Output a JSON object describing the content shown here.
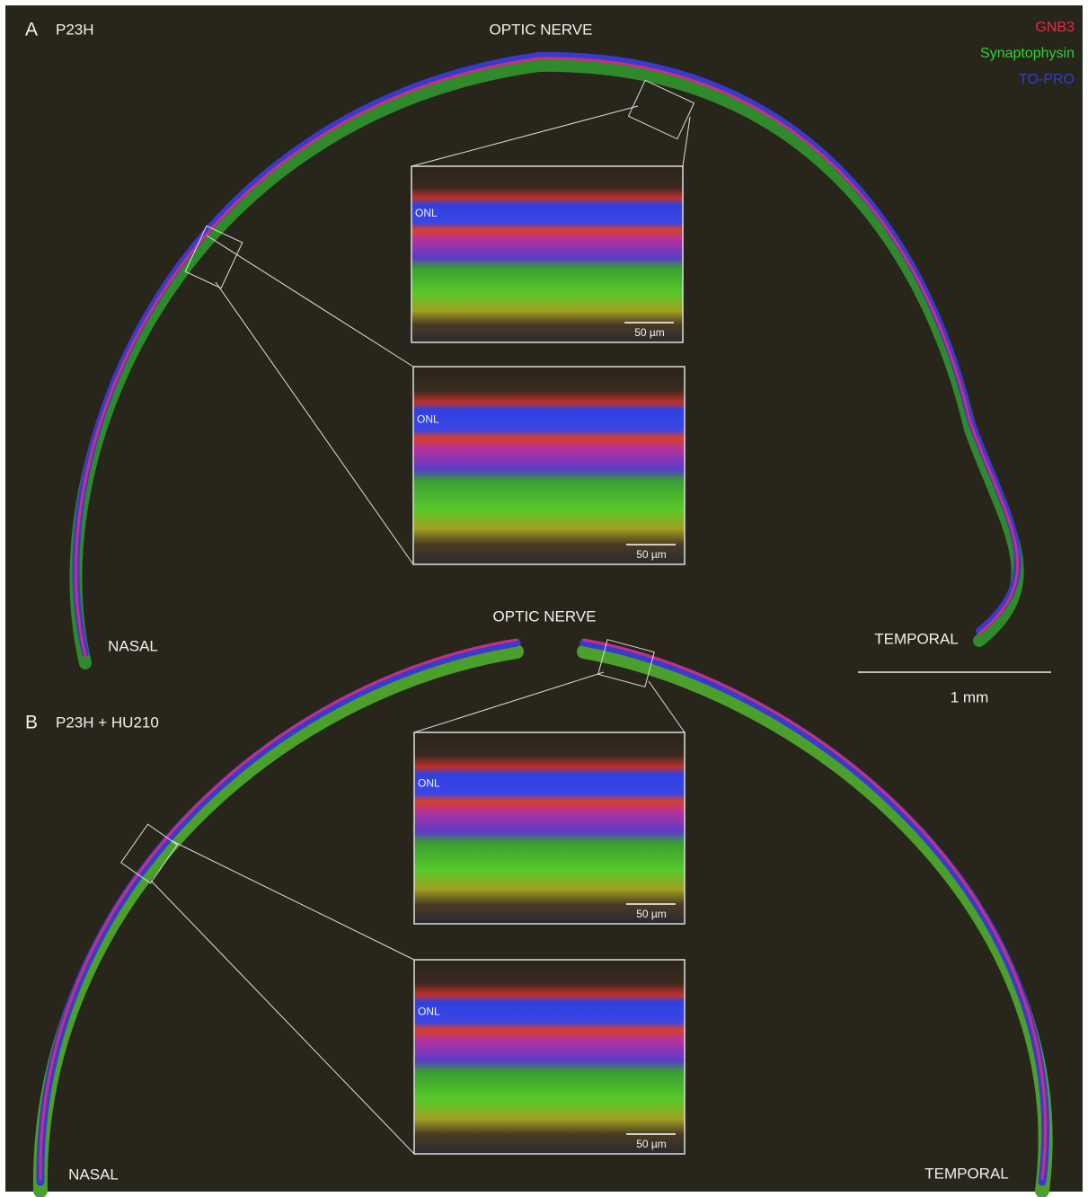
{
  "legend": [
    {
      "label": "GNB3",
      "color": "#e8264a"
    },
    {
      "label": "Synaptophysin",
      "color": "#2fd23a"
    },
    {
      "label": "TO-PRO",
      "color": "#2b3fd6"
    }
  ],
  "scale_bar": "1 mm",
  "panels": [
    {
      "letter": "A",
      "condition": "P23H",
      "top_label": "OPTIC NERVE",
      "left_label": "NASAL",
      "right_label": "TEMPORAL",
      "insets": [
        {
          "layer_label": "ONL",
          "scale_label": "50 µm"
        },
        {
          "layer_label": "ONL",
          "scale_label": "50 µm"
        }
      ]
    },
    {
      "letter": "B",
      "condition": "P23H + HU210",
      "top_label": "OPTIC NERVE",
      "left_label": "NASAL",
      "right_label": "TEMPORAL",
      "insets": [
        {
          "layer_label": "ONL",
          "scale_label": "50 µm"
        },
        {
          "layer_label": "ONL",
          "scale_label": "50 µm"
        }
      ]
    }
  ]
}
